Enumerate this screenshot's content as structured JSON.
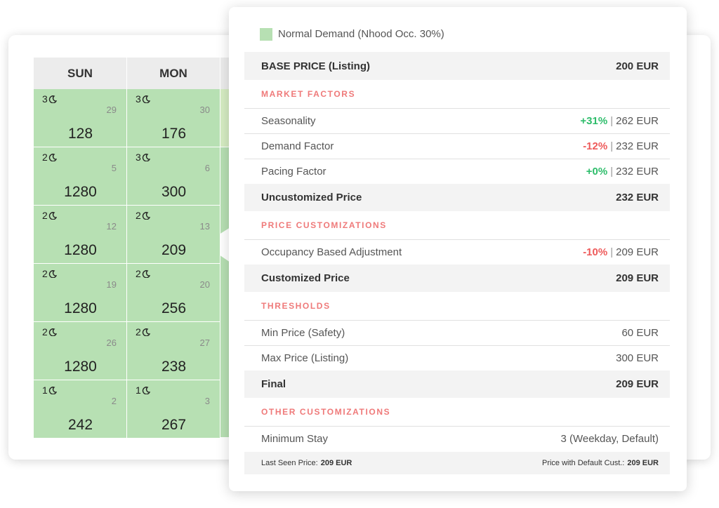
{
  "calendar": {
    "headers": [
      "SUN",
      "MON"
    ],
    "weeks": [
      [
        {
          "stay": "3",
          "date": "29",
          "price": "128"
        },
        {
          "stay": "3",
          "date": "30",
          "price": "176"
        }
      ],
      [
        {
          "stay": "2",
          "date": "5",
          "price": "1280"
        },
        {
          "stay": "3",
          "date": "6",
          "price": "300"
        }
      ],
      [
        {
          "stay": "2",
          "date": "12",
          "price": "1280"
        },
        {
          "stay": "2",
          "date": "13",
          "price": "209"
        }
      ],
      [
        {
          "stay": "2",
          "date": "19",
          "price": "1280"
        },
        {
          "stay": "2",
          "date": "20",
          "price": "256"
        }
      ],
      [
        {
          "stay": "2",
          "date": "26",
          "price": "1280"
        },
        {
          "stay": "2",
          "date": "27",
          "price": "238"
        }
      ],
      [
        {
          "stay": "1",
          "date": "2",
          "price": "242"
        },
        {
          "stay": "1",
          "date": "3",
          "price": "267"
        }
      ]
    ]
  },
  "panel": {
    "legend": "Normal Demand (Nhood Occ. 30%)",
    "base_price": {
      "label": "BASE PRICE (Listing)",
      "value": "200 EUR"
    },
    "market_factors": {
      "title": "MARKET FACTORS",
      "items": [
        {
          "label": "Seasonality",
          "change": "+31%",
          "result": "262 EUR"
        },
        {
          "label": "Demand Factor",
          "change": "-12%",
          "result": "232 EUR"
        },
        {
          "label": "Pacing Factor",
          "change": "+0%",
          "result": "232 EUR"
        }
      ],
      "total": {
        "label": "Uncustomized Price",
        "value": "232 EUR"
      }
    },
    "price_customizations": {
      "title": "PRICE CUSTOMIZATIONS",
      "items": [
        {
          "label": "Occupancy Based Adjustment",
          "change": "-10%",
          "result": "209 EUR"
        }
      ],
      "total": {
        "label": "Customized Price",
        "value": "209 EUR"
      }
    },
    "thresholds": {
      "title": "THRESHOLDS",
      "items": [
        {
          "label": "Min Price (Safety)",
          "value": "60 EUR"
        },
        {
          "label": "Max Price (Listing)",
          "value": "300 EUR"
        }
      ],
      "total": {
        "label": "Final",
        "value": "209 EUR"
      }
    },
    "other_customizations": {
      "title": "OTHER CUSTOMIZATIONS",
      "items": [
        {
          "label": "Minimum Stay",
          "value": "3 (Weekday, Default)"
        }
      ]
    },
    "footer": {
      "last_seen": {
        "label": "Last Seen Price:",
        "value": "209 EUR"
      },
      "default_cust": {
        "label": "Price with Default Cust.:",
        "value": "209 EUR"
      }
    }
  }
}
